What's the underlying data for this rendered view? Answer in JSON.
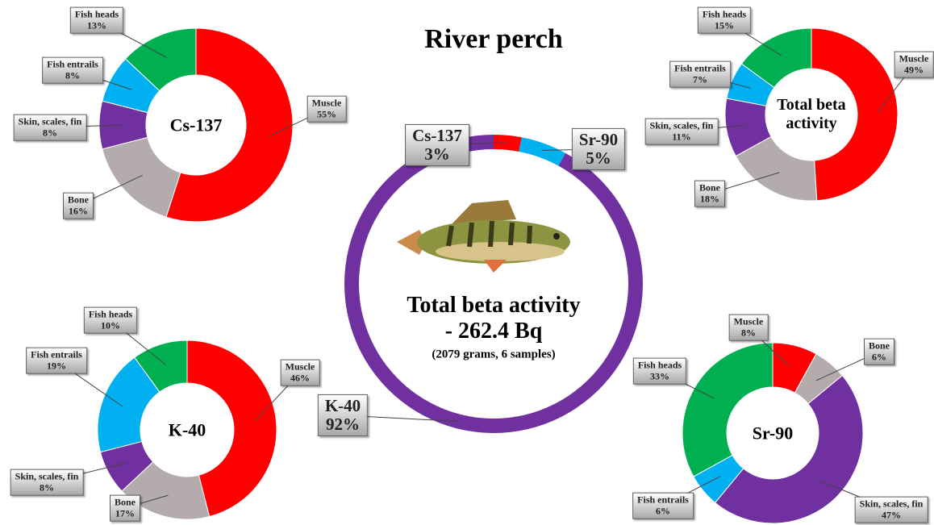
{
  "chart_data": [
    {
      "type": "donut",
      "title": "River perch",
      "center_label": "Total beta activity - 262.4 Bq",
      "subtitle": "(2079 grams, 6 samples)",
      "categories": [
        "Cs-137",
        "Sr-90",
        "K-40"
      ],
      "values": [
        3,
        5,
        92
      ],
      "value_labels": [
        "3%",
        "5%",
        "92%"
      ],
      "colors": [
        "#ff0000",
        "#00b0f0",
        "#7030a0"
      ]
    },
    {
      "type": "donut",
      "title": "Cs-137",
      "categories": [
        "Muscle",
        "Bone",
        "Skin, scales, fin",
        "Fish entrails",
        "Fish heads"
      ],
      "values": [
        55,
        16,
        8,
        8,
        13
      ],
      "value_labels": [
        "55%",
        "16%",
        "8%",
        "8%",
        "13%"
      ],
      "colors": [
        "#ff0000",
        "#b4acac",
        "#7030a0",
        "#00b0f0",
        "#00b050"
      ]
    },
    {
      "type": "donut",
      "title": "Total beta activity",
      "categories": [
        "Muscle",
        "Bone",
        "Skin, scales, fin",
        "Fish entrails",
        "Fish heads"
      ],
      "values": [
        49,
        18,
        11,
        7,
        15
      ],
      "value_labels": [
        "49%",
        "18%",
        "11%",
        "7%",
        "15%"
      ],
      "colors": [
        "#ff0000",
        "#b4acac",
        "#7030a0",
        "#00b0f0",
        "#00b050"
      ]
    },
    {
      "type": "donut",
      "title": "K-40",
      "categories": [
        "Muscle",
        "Bone",
        "Skin, scales, fin",
        "Fish entrails",
        "Fish heads"
      ],
      "values": [
        46,
        17,
        8,
        19,
        10
      ],
      "value_labels": [
        "46%",
        "17%",
        "8%",
        "19%",
        "10%"
      ],
      "colors": [
        "#ff0000",
        "#b4acac",
        "#7030a0",
        "#00b0f0",
        "#00b050"
      ]
    },
    {
      "type": "donut",
      "title": "Sr-90",
      "categories": [
        "Muscle",
        "Bone",
        "Skin, scales, fin",
        "Fish entrails",
        "Fish heads"
      ],
      "values": [
        8,
        6,
        47,
        6,
        33
      ],
      "value_labels": [
        "8%",
        "6%",
        "47%",
        "6%",
        "33%"
      ],
      "colors": [
        "#ff0000",
        "#b4acac",
        "#7030a0",
        "#00b0f0",
        "#00b050"
      ]
    }
  ]
}
